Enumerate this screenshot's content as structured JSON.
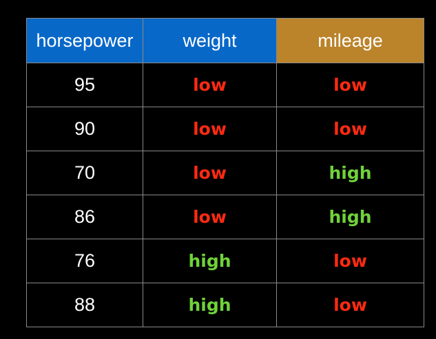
{
  "colors": {
    "background": "#000000",
    "header_blue": "#0868c8",
    "header_orange": "#bb832a",
    "grid_line": "#8a8a8a",
    "low": "#ff2a12",
    "high": "#6fd23a"
  },
  "table": {
    "columns": [
      {
        "label": "horsepower",
        "bg": "#0868c8"
      },
      {
        "label": "weight",
        "bg": "#0868c8"
      },
      {
        "label": "mileage",
        "bg": "#bb832a"
      }
    ],
    "rows": [
      {
        "horsepower": "95",
        "weight": "low",
        "mileage": "low"
      },
      {
        "horsepower": "90",
        "weight": "low",
        "mileage": "low"
      },
      {
        "horsepower": "70",
        "weight": "low",
        "mileage": "high"
      },
      {
        "horsepower": "86",
        "weight": "low",
        "mileage": "high"
      },
      {
        "horsepower": "76",
        "weight": "high",
        "mileage": "low"
      },
      {
        "horsepower": "88",
        "weight": "high",
        "mileage": "low"
      }
    ]
  }
}
